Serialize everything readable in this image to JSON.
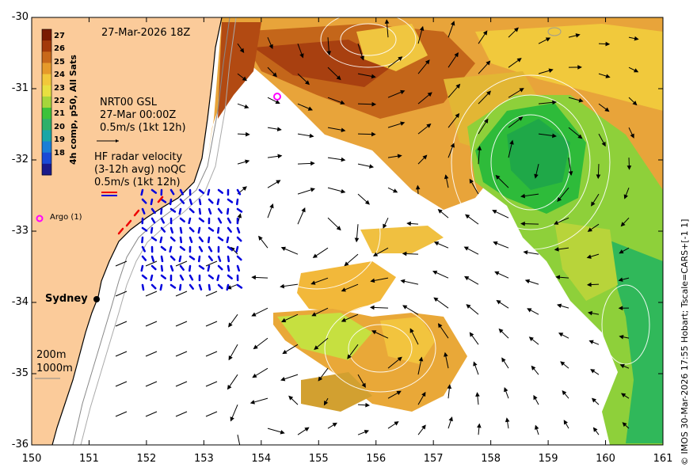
{
  "map": {
    "date_label": "27-Mar-2026 18Z",
    "x_ticks": [
      "150",
      "151",
      "152",
      "153",
      "154",
      "155",
      "156",
      "157",
      "158",
      "159",
      "160",
      "161"
    ],
    "y_ticks": [
      "-30",
      "-31",
      "-32",
      "-33",
      "-34",
      "-35",
      "-36"
    ],
    "colorbar": {
      "title": "4h comp, p50, All Sats",
      "ticks": [
        "27",
        "26",
        "25",
        "24",
        "23",
        "22",
        "21",
        "20",
        "19",
        "18"
      ],
      "colors": [
        "#7a1a00",
        "#a33a0a",
        "#c8681a",
        "#e69a2a",
        "#f2c83a",
        "#e8e040",
        "#a6d63a",
        "#3cc23a",
        "#2eb06a",
        "#1aa6a6",
        "#1a7ed6",
        "#1a4ad6",
        "#1a1a8a"
      ]
    },
    "nrt_label": [
      "NRT00 GSL",
      "27-Mar 00:00Z",
      "0.5m/s (1kt 12h)"
    ],
    "hf_label": [
      "HF radar velocity",
      "(3-12h avg) noQC",
      "0.5m/s (1kt 12h)"
    ],
    "argo_label": "Argo (1)",
    "city_label": "Sydney",
    "depth_labels": [
      "200m",
      "1000m"
    ],
    "credit": "© IMOS 30-Mar-2026 17:55 Hobart; Tscale=CARS+[-1 1]",
    "colors": {
      "land": "#fbcb9a",
      "argo": "#ff00ff",
      "hf": "#0000dd",
      "hf_red": "#ee0000"
    }
  }
}
